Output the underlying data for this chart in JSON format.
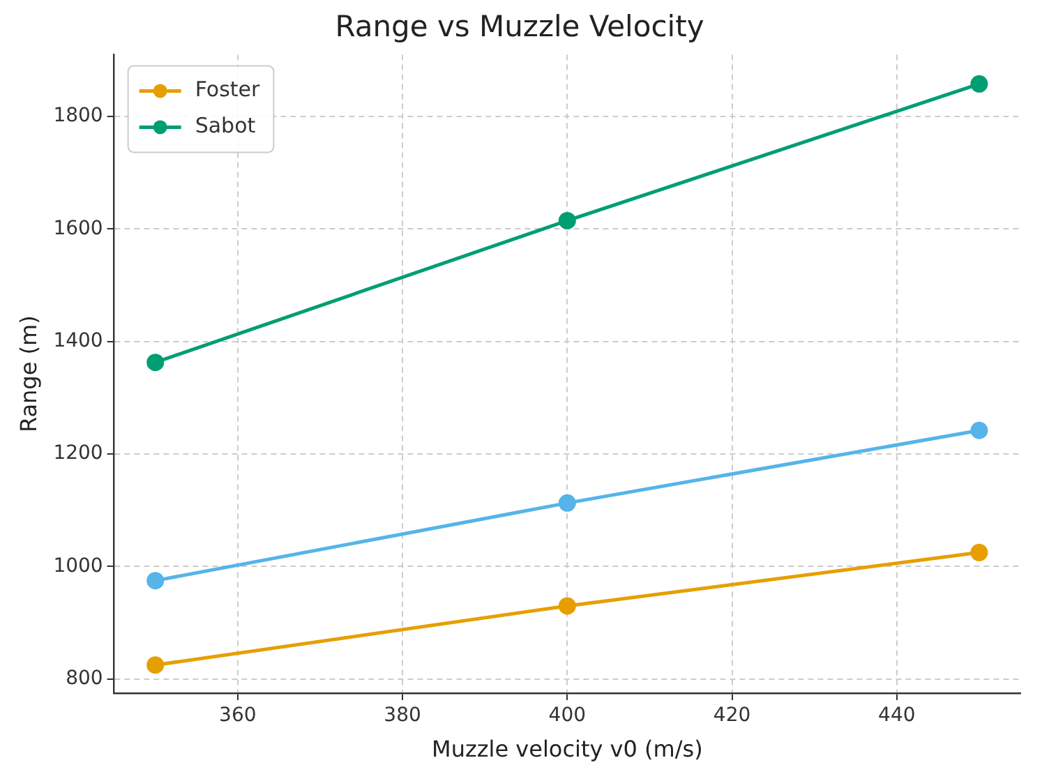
{
  "chart_data": {
    "type": "line",
    "title": "Range vs Muzzle Velocity",
    "xlabel": "Muzzle velocity v0 (m/s)",
    "ylabel": "Range (m)",
    "x": [
      350,
      400,
      450
    ],
    "series": [
      {
        "name": "Foster",
        "color": "#e69f00",
        "values": [
          825,
          930,
          1025
        ]
      },
      {
        "color": "#56b4e9",
        "values": [
          975,
          1113,
          1242
        ]
      },
      {
        "name": "Sabot",
        "color": "#009e73",
        "values": [
          1363,
          1615,
          1858
        ]
      }
    ],
    "xlim": [
      345,
      455
    ],
    "xticks": [
      360,
      380,
      400,
      420,
      440
    ],
    "ylim": [
      775,
      1910
    ],
    "yticks": [
      800,
      1000,
      1200,
      1400,
      1600,
      1800
    ],
    "grid": true,
    "legend": "top left",
    "marker": "circle",
    "line_style": "solid"
  }
}
